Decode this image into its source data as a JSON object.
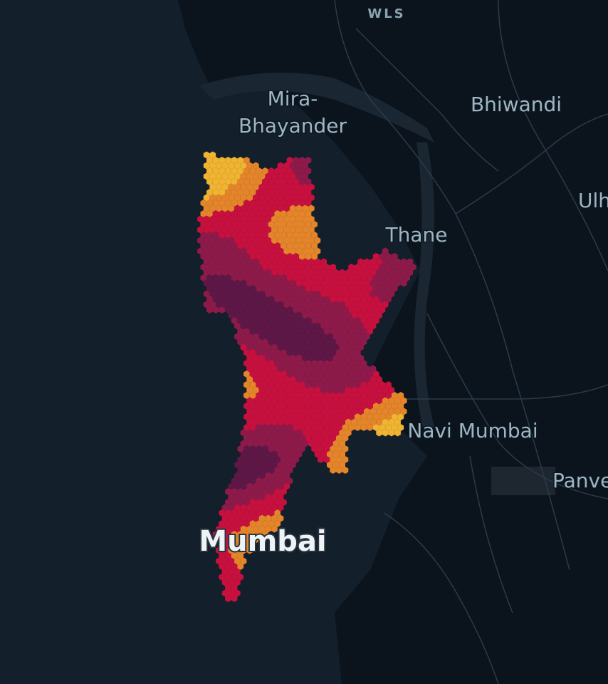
{
  "map": {
    "labels": {
      "wls": "WLS",
      "mira_1": "Mira-",
      "mira_2": "Bhayander",
      "bhiwandi": "Bhiwandi",
      "ulh": "Ulh",
      "thane": "Thane",
      "navi_mumbai": "Navi Mumbai",
      "panvel": "Panve",
      "mumbai": "Mumbai"
    }
  }
}
